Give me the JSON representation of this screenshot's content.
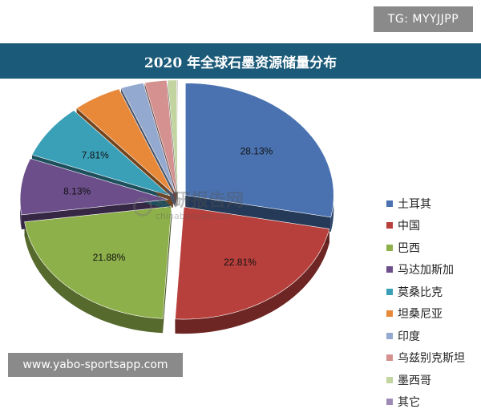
{
  "top_tag": "TG: MYYJJPP",
  "bottom_tag": "www.yabo-sportsapp.com",
  "watermark": {
    "cn": "观研报告网",
    "en": "chinabaogao.com"
  },
  "chart_data": {
    "type": "pie",
    "title": "2020 年全球石墨资源储量分布",
    "legend_position": "right",
    "categories": [
      "土耳其",
      "中国",
      "巴西",
      "马达加斯加",
      "莫桑比克",
      "坦桑尼亚",
      "印度",
      "乌兹别克斯坦",
      "墨西哥",
      "其它"
    ],
    "values": [
      28.13,
      22.81,
      21.88,
      8.13,
      7.81,
      5.31,
      2.5,
      2.38,
      0.97,
      0.09
    ],
    "labels": [
      "28.13%",
      "22.81%",
      "21.88%",
      "8.13%",
      "7.81%",
      "5.31%",
      "2.50%",
      "2.38%",
      "0.97%",
      "0.09%"
    ],
    "colors": [
      "#4a72b0",
      "#b8403c",
      "#8eb04a",
      "#6b4e8a",
      "#3aa0b8",
      "#e8893a",
      "#94a9cf",
      "#d4918f",
      "#c2d49f",
      "#9e8bb5"
    ]
  }
}
